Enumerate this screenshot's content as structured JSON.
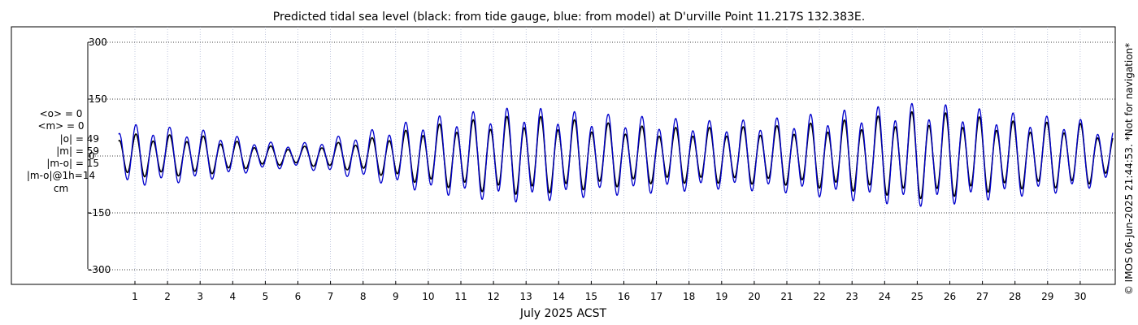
{
  "chart_data": {
    "type": "line",
    "title": "Predicted tidal sea level (black: from tide gauge, blue: from model) at D'urville Point 11.217S 132.383E.",
    "xlabel": "July 2025 ACST",
    "ylabel": "cm",
    "xlim": [
      0.4,
      31.3
    ],
    "ylim": [
      -320,
      320
    ],
    "y_ticks": [
      300,
      150,
      0,
      -150,
      -300
    ],
    "y_tick_labels": [
      "300",
      "150",
      "0",
      "-150",
      "-300"
    ],
    "x_ticks": [
      1,
      2,
      3,
      4,
      5,
      6,
      7,
      8,
      9,
      10,
      11,
      12,
      13,
      14,
      15,
      16,
      17,
      18,
      19,
      20,
      21,
      22,
      23,
      24,
      25,
      26,
      27,
      28,
      29,
      30
    ],
    "x_tick_labels": [
      "1",
      "2",
      "3",
      "4",
      "5",
      "6",
      "7",
      "8",
      "9",
      "10",
      "11",
      "12",
      "13",
      "14",
      "15",
      "16",
      "17",
      "18",
      "19",
      "20",
      "21",
      "22",
      "23",
      "24",
      "25",
      "26",
      "27",
      "28",
      "29",
      "30"
    ],
    "grid": true,
    "x_start": 0.5,
    "x_end": 31.0,
    "series": [
      {
        "name": "tide gauge",
        "color": "#000000",
        "description": "semi-diurnal tide, tidal range envelope in cm read from the plot",
        "envelope_days": [
          0.5,
          3,
          5,
          6,
          8,
          10,
          12,
          13,
          15,
          17,
          19,
          21,
          23,
          25,
          26,
          28,
          30,
          31
        ],
        "envelope_amplitude": [
          55,
          50,
          25,
          22,
          40,
          75,
          95,
          100,
          85,
          70,
          70,
          75,
          90,
          110,
          105,
          85,
          80,
          50
        ]
      },
      {
        "name": "model",
        "color": "#0000cc",
        "description": "semi-diurnal tide, tidal range envelope in cm read from the plot",
        "envelope_days": [
          0.5,
          3,
          5,
          6,
          8,
          10,
          12,
          13,
          15,
          17,
          19,
          21,
          23,
          25,
          26,
          28,
          30,
          31
        ],
        "envelope_amplitude": [
          80,
          65,
          35,
          30,
          60,
          95,
          115,
          120,
          105,
          95,
          85,
          95,
          115,
          130,
          125,
          105,
          90,
          65
        ]
      }
    ]
  },
  "stats": {
    "mean_obs": "<o> = 0",
    "mean_model": "<m> = 0",
    "abs_obs": "|o| = 49",
    "abs_model": "|m| = 59",
    "abs_diff": "|m-o| = 15",
    "abs_diff_1h": "|m-o|@1h=14",
    "units": "cm"
  },
  "credit": "© IMOS 06-Jun-2025 21:44:53. *Not for navigation*"
}
